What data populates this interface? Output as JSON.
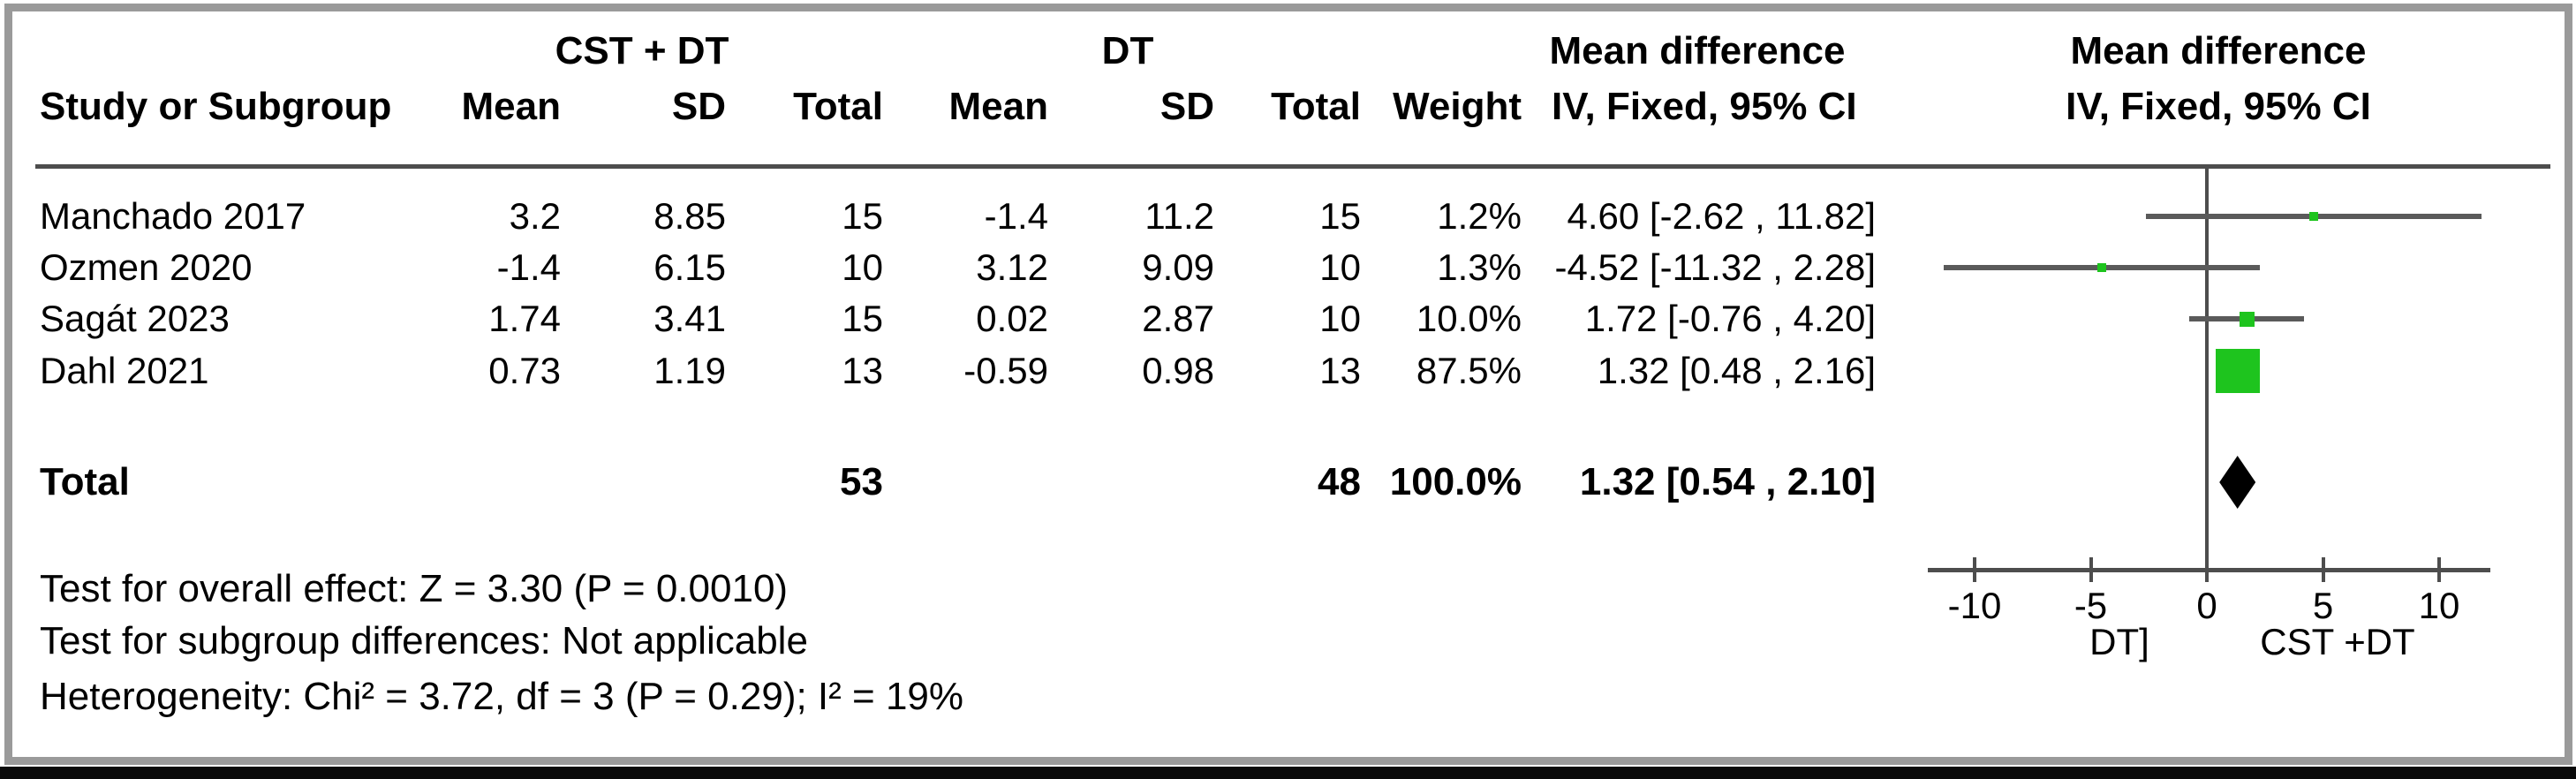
{
  "table": {
    "group1_label": "CST + DT",
    "group2_label": "DT",
    "col_ci_header_line1": "Mean difference",
    "col_ci_header_line2": "IV, Fixed, 95% CI",
    "plot_header_line1": "Mean difference",
    "plot_header_line2": "IV, Fixed, 95% CI",
    "headers": {
      "study": "Study or Subgroup",
      "mean1": "Mean",
      "sd1": "SD",
      "total1": "Total",
      "mean2": "Mean",
      "sd2": "SD",
      "total2": "Total",
      "weight": "Weight"
    },
    "rows": [
      {
        "study": "Manchado 2017",
        "mean1": "3.2",
        "sd1": "8.85",
        "total1": "15",
        "mean2": "-1.4",
        "sd2": "11.2",
        "total2": "15",
        "weight": "1.2%",
        "ci": "4.60 [-2.62 , 11.82]"
      },
      {
        "study": "Ozmen 2020",
        "mean1": "-1.4",
        "sd1": "6.15",
        "total1": "10",
        "mean2": "3.12",
        "sd2": "9.09",
        "total2": "10",
        "weight": "1.3%",
        "ci": "-4.52 [-11.32 , 2.28]"
      },
      {
        "study": "Sagát 2023",
        "mean1": "1.74",
        "sd1": "3.41",
        "total1": "15",
        "mean2": "0.02",
        "sd2": "2.87",
        "total2": "10",
        "weight": "10.0%",
        "ci": "1.72 [-0.76 , 4.20]"
      },
      {
        "study": "Dahl 2021",
        "mean1": "0.73",
        "sd1": "1.19",
        "total1": "13",
        "mean2": "-0.59",
        "sd2": "0.98",
        "total2": "13",
        "weight": "87.5%",
        "ci": "1.32 [0.48 , 2.16]"
      }
    ],
    "total_row": {
      "label": "Total",
      "total1": "53",
      "total2": "48",
      "weight": "100.0%",
      "ci": "1.32 [0.54 , 2.10]"
    }
  },
  "footer": {
    "overall_effect": "Test for overall effect: Z = 3.30 (P = 0.0010)",
    "subgroup_differences": "Test for subgroup differences: Not applicable",
    "heterogeneity": "Heterogeneity: Chi² = 3.72, df = 3 (P = 0.29); I² = 19%"
  },
  "chart_data": {
    "type": "forest",
    "effect_measure": "Mean difference",
    "model": "IV, Fixed, 95% CI",
    "studies": [
      {
        "name": "Manchado 2017",
        "est": 4.6,
        "lo": -2.62,
        "hi": 11.82,
        "weight_pct": 1.2
      },
      {
        "name": "Ozmen 2020",
        "est": -4.52,
        "lo": -11.32,
        "hi": 2.28,
        "weight_pct": 1.3
      },
      {
        "name": "Sagát 2023",
        "est": 1.72,
        "lo": -0.76,
        "hi": 4.2,
        "weight_pct": 10.0
      },
      {
        "name": "Dahl 2021",
        "est": 1.32,
        "lo": 0.48,
        "hi": 2.16,
        "weight_pct": 87.5
      }
    ],
    "total": {
      "est": 1.32,
      "lo": 0.54,
      "hi": 2.1,
      "weight_pct": 100.0
    },
    "axis": {
      "ticks": [
        -10,
        -5,
        0,
        5,
        10
      ],
      "tick_labels": [
        "-10",
        "-5",
        "0",
        "5",
        "10"
      ],
      "xmin": -12,
      "xmax": 12.2
    },
    "left_label": "DT]",
    "right_label": "CST +DT",
    "marker_color": "#1ec41e",
    "line_color": "#5a5a5a",
    "axis_color": "#4d4d4d",
    "diamond_color": "#000000"
  }
}
